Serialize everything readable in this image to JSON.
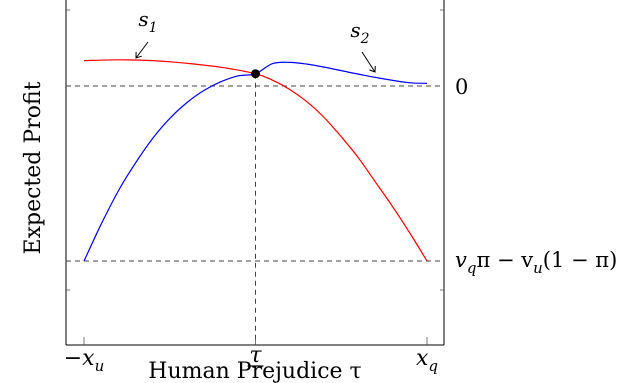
{
  "chart_data": {
    "type": "line",
    "title": "",
    "xlabel": "Human Prejudice τ",
    "ylabel": "Expected Profit",
    "x_ticks": [
      {
        "label": "−x",
        "sub": "u",
        "x": -1.0
      },
      {
        "label": "τ",
        "x": 0.0,
        "underline": true
      },
      {
        "label": "x",
        "sub": "q",
        "x": 1.0
      }
    ],
    "xlim": [
      -1.0,
      1.0
    ],
    "ylim": [
      -1.0,
      0.15
    ],
    "reference_lines": [
      {
        "orientation": "horizontal",
        "y": 0.0,
        "label": "0"
      },
      {
        "orientation": "horizontal",
        "y": -1.0,
        "label": "v_qπ − v_u(1 − π)",
        "label_parts": [
          "v",
          "q",
          "π − v",
          "u",
          "(1 − π)"
        ]
      },
      {
        "orientation": "vertical",
        "x": 0.0
      }
    ],
    "series": [
      {
        "name": "s1",
        "color": "#ff0000",
        "x": [
          -1.0,
          -0.8,
          -0.6,
          -0.4,
          -0.2,
          0.0,
          0.1,
          0.2,
          0.3,
          0.4,
          0.5,
          0.6,
          0.7,
          0.8,
          0.9,
          1.0
        ],
        "y": [
          0.145,
          0.15,
          0.145,
          0.13,
          0.107,
          0.07,
          0.033,
          -0.02,
          -0.09,
          -0.18,
          -0.29,
          -0.41,
          -0.55,
          -0.69,
          -0.84,
          -1.0
        ]
      },
      {
        "name": "s2",
        "color": "#0000ff",
        "x": [
          -1.0,
          -0.9,
          -0.8,
          -0.7,
          -0.6,
          -0.5,
          -0.4,
          -0.3,
          -0.2,
          -0.1,
          0.0,
          0.1,
          0.2,
          0.3,
          0.4,
          0.5,
          0.6,
          0.7,
          0.8,
          0.9,
          1.0
        ],
        "y": [
          -1.0,
          -0.79,
          -0.6,
          -0.44,
          -0.3,
          -0.185,
          -0.095,
          -0.025,
          0.025,
          0.058,
          0.07,
          0.128,
          0.135,
          0.125,
          0.108,
          0.088,
          0.068,
          0.049,
          0.032,
          0.018,
          0.015
        ]
      }
    ],
    "annotations": [
      {
        "text": "s",
        "sub": "1",
        "series": "s1"
      },
      {
        "text": "s",
        "sub": "2",
        "series": "s2"
      }
    ],
    "intersection_point": {
      "x": 0.0,
      "y": 0.07
    },
    "grid": false,
    "legend": "none"
  }
}
